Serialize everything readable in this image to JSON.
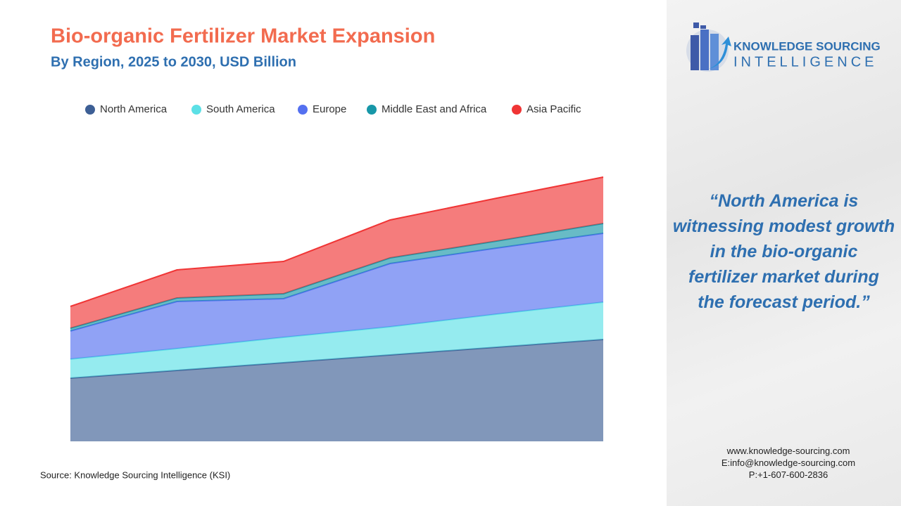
{
  "chart_data": {
    "type": "stacked-area",
    "title": "Bio-organic Fertilizer Market Expansion",
    "subtitle": "By Region, 2025 to 2030, USD Billion",
    "categories": [
      null,
      null,
      null,
      null,
      null,
      null
    ],
    "series": [
      {
        "name": "North America",
        "color": "#3d5f95",
        "values": [
          0.9,
          1.01,
          1.12,
          1.23,
          1.34,
          1.45
        ]
      },
      {
        "name": "South America",
        "color": "#5ce0e6",
        "values": [
          0.27,
          0.31,
          0.36,
          0.4,
          0.47,
          0.53
        ]
      },
      {
        "name": "Europe",
        "color": "#5470f0",
        "values": [
          0.4,
          0.67,
          0.55,
          0.9,
          0.94,
          0.98
        ]
      },
      {
        "name": "Middle East and Africa",
        "color": "#1797a8",
        "values": [
          0.04,
          0.05,
          0.07,
          0.08,
          0.1,
          0.14
        ]
      },
      {
        "name": "Asia Pacific",
        "color": "#f03535",
        "values": [
          0.31,
          0.4,
          0.46,
          0.54,
          0.61,
          0.66
        ]
      }
    ],
    "ylim": [
      0,
      4
    ],
    "legend": "top",
    "source": "Source: Knowledge Sourcing Intelligence (KSI)"
  },
  "branding": {
    "logo_line1": "KNOWLEDGE SOURCING",
    "logo_line2": "INTELLIGENCE",
    "quote_lines": [
      "“North America is",
      "witnessing modest growth",
      "in the bio-organic",
      "fertilizer market during",
      "the forecast period.”"
    ],
    "contacts": [
      "www.knowledge-sourcing.com",
      "E:info@knowledge-sourcing.com",
      "P:+1-607-600-2836"
    ]
  }
}
